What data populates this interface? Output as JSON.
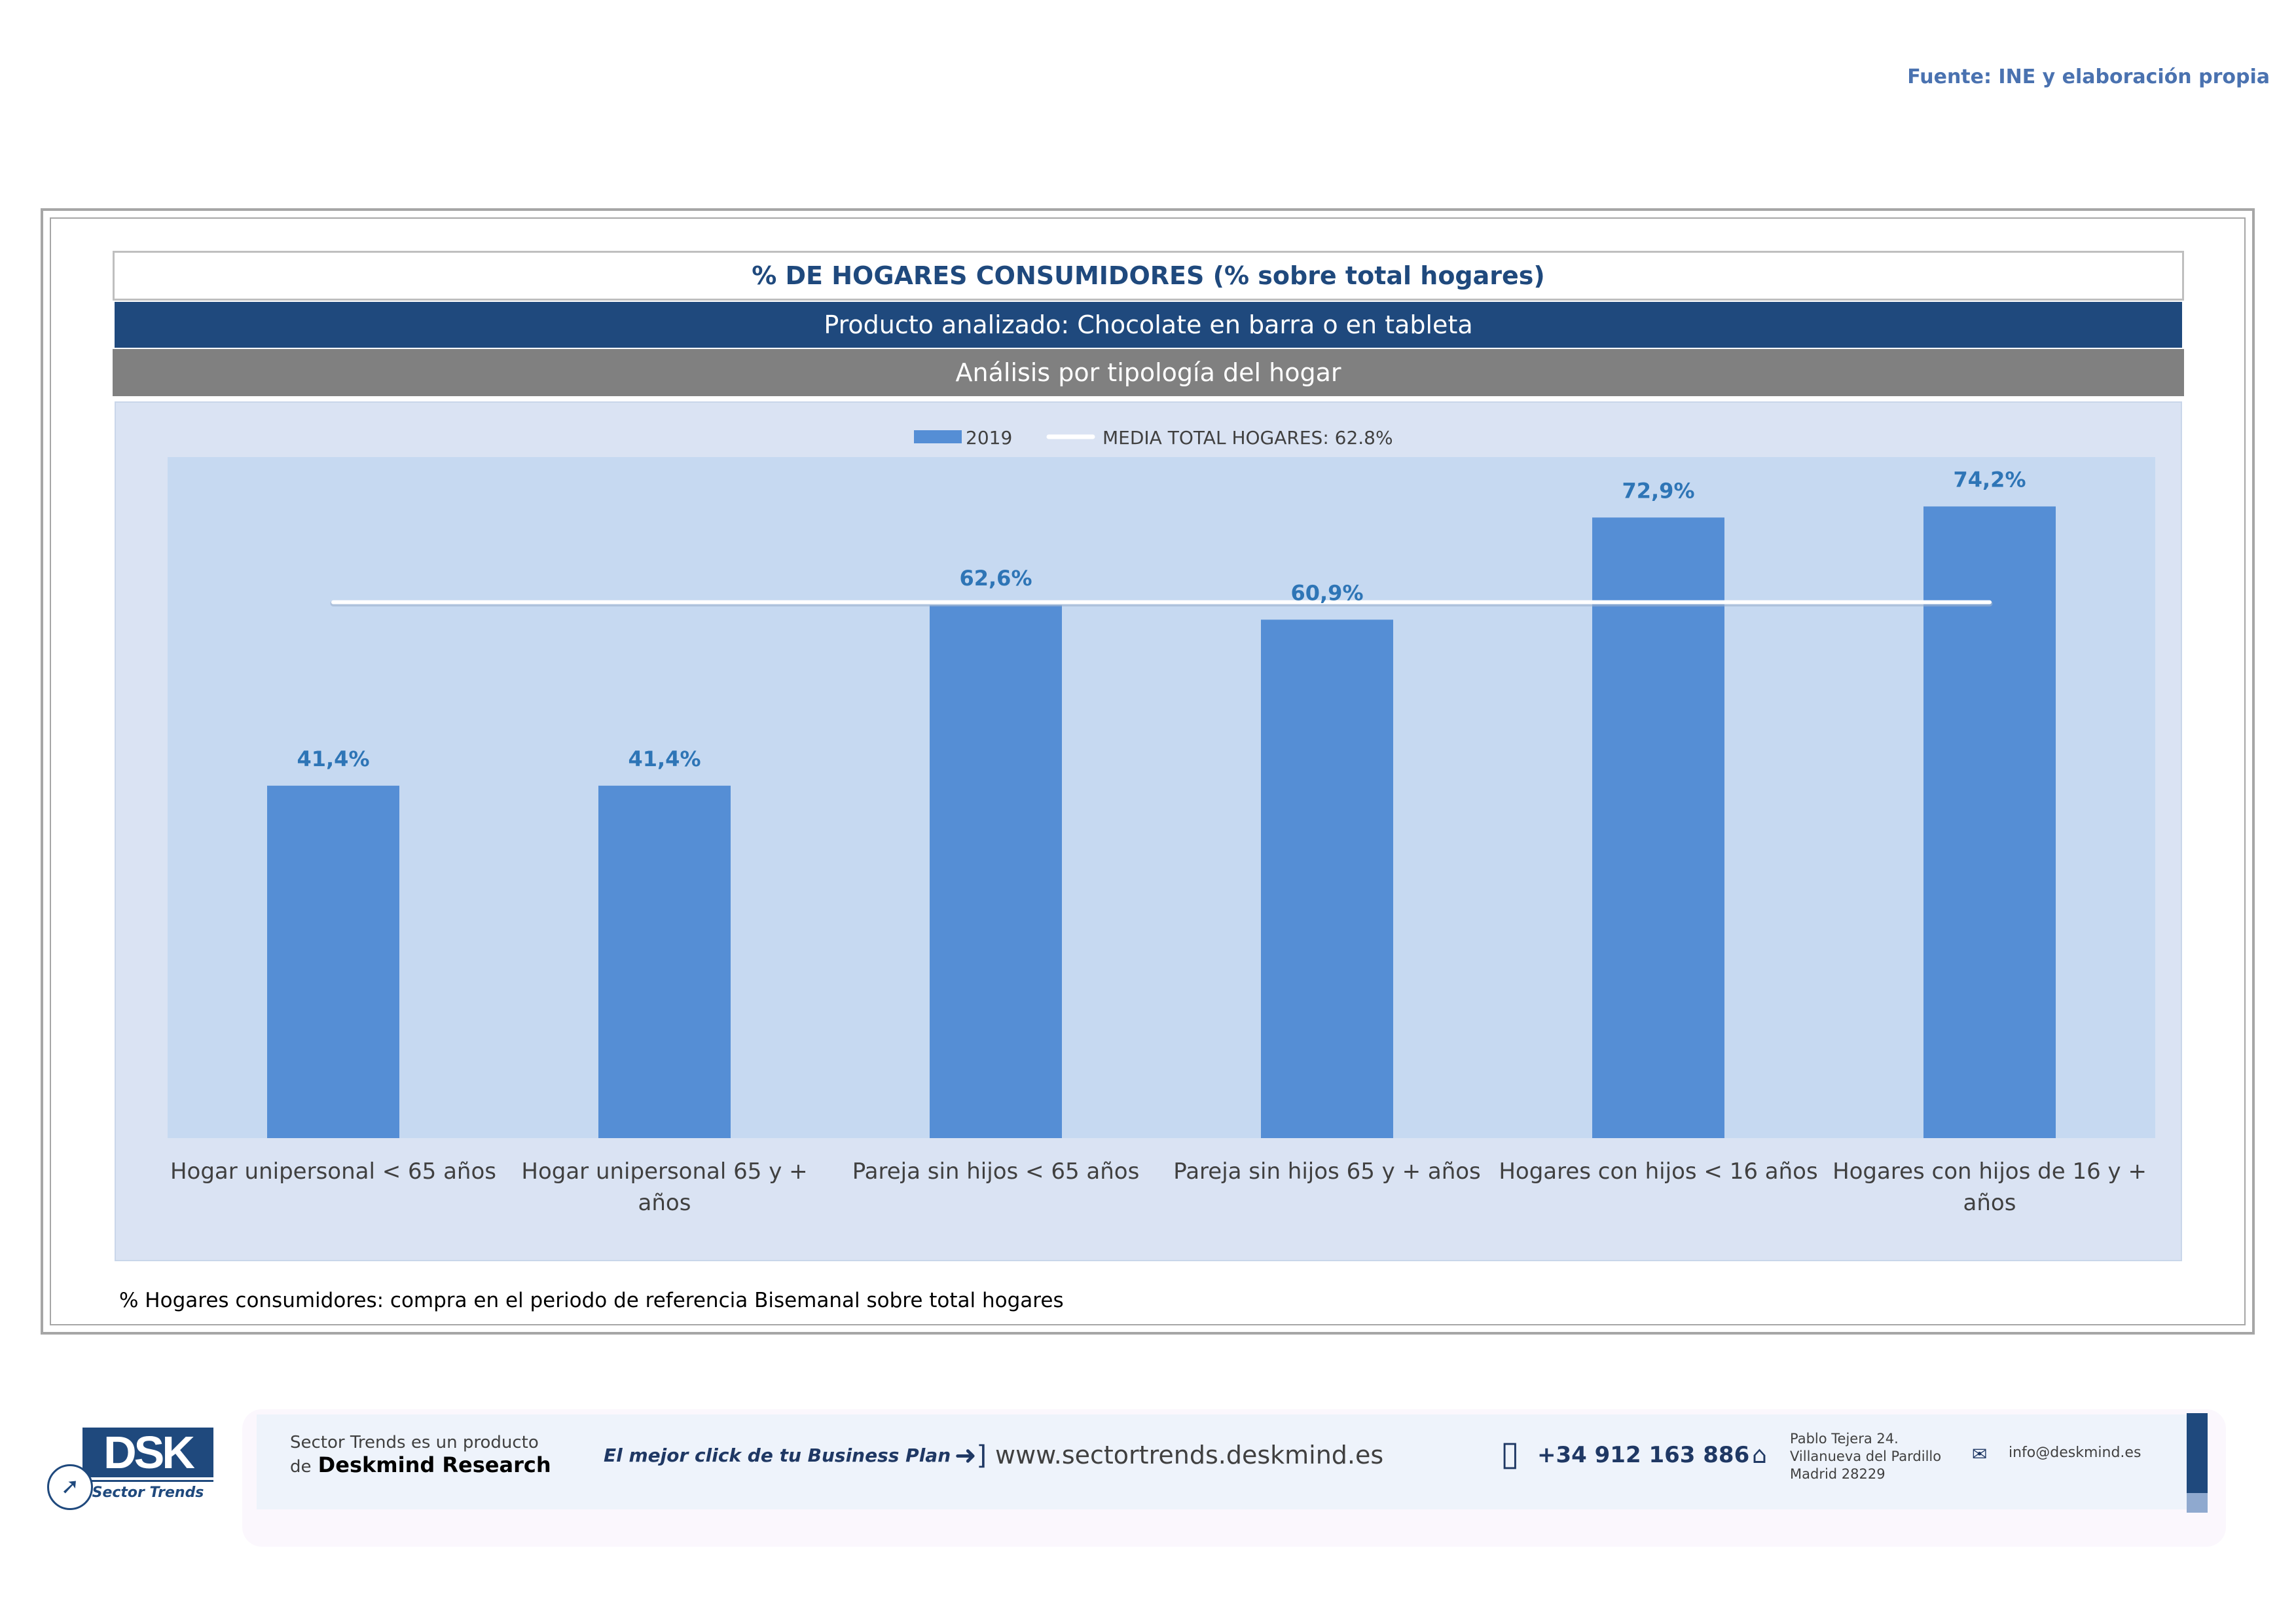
{
  "source": "Fuente: INE y elaboración propia",
  "title": "% DE HOGARES CONSUMIDORES (% sobre total hogares)",
  "product": "Producto analizado: Chocolate en barra o en tableta",
  "analysis": "Análisis por tipología del hogar",
  "note": "% Hogares consumidores: compra en el periodo de referencia Bisemanal sobre total hogares",
  "chart_data": {
    "type": "bar",
    "title": "% DE HOGARES CONSUMIDORES (% sobre total hogares)",
    "categories": [
      [
        "Hogar unipersonal < 65 años"
      ],
      [
        "Hogar unipersonal  65 y +",
        "años"
      ],
      [
        "Pareja sin hijos < 65 años"
      ],
      [
        "Pareja sin hijos 65 y + años"
      ],
      [
        "Hogares con hijos < 16 años"
      ],
      [
        "Hogares con hijos de 16 y +",
        "años"
      ]
    ],
    "series": [
      {
        "name": "2019",
        "values": [
          41.4,
          41.4,
          62.6,
          60.9,
          72.9,
          74.2
        ]
      }
    ],
    "data_labels": [
      "41,4%",
      "41,4%",
      "62,6%",
      "60,9%",
      "72,9%",
      "74,2%"
    ],
    "reference_line": {
      "name": "MEDIA TOTAL  HOGARES:  62.8%",
      "value": 62.8
    },
    "ylim": [
      0,
      80
    ],
    "legend_position": "top-center",
    "colors": {
      "bar": "#558ed5",
      "label": "#2e75b6",
      "plot_bg": "#c6d9f1",
      "line": "#ffffff"
    }
  },
  "footer": {
    "product_line1": "Sector Trends es un producto",
    "product_line2_prefix": "de",
    "product_line2_brand": "Deskmind Research",
    "slogan": "El mejor click de tu Business Plan",
    "website": "www.sectortrends.deskmind.es",
    "phone": "+34 912 163 886",
    "address": [
      "Pablo Tejera 24.",
      "Villanueva del Pardillo",
      "Madrid 28229"
    ],
    "email": "info@deskmind.es",
    "logo_text": "DSK",
    "logo_sub": "Sector Trends"
  }
}
